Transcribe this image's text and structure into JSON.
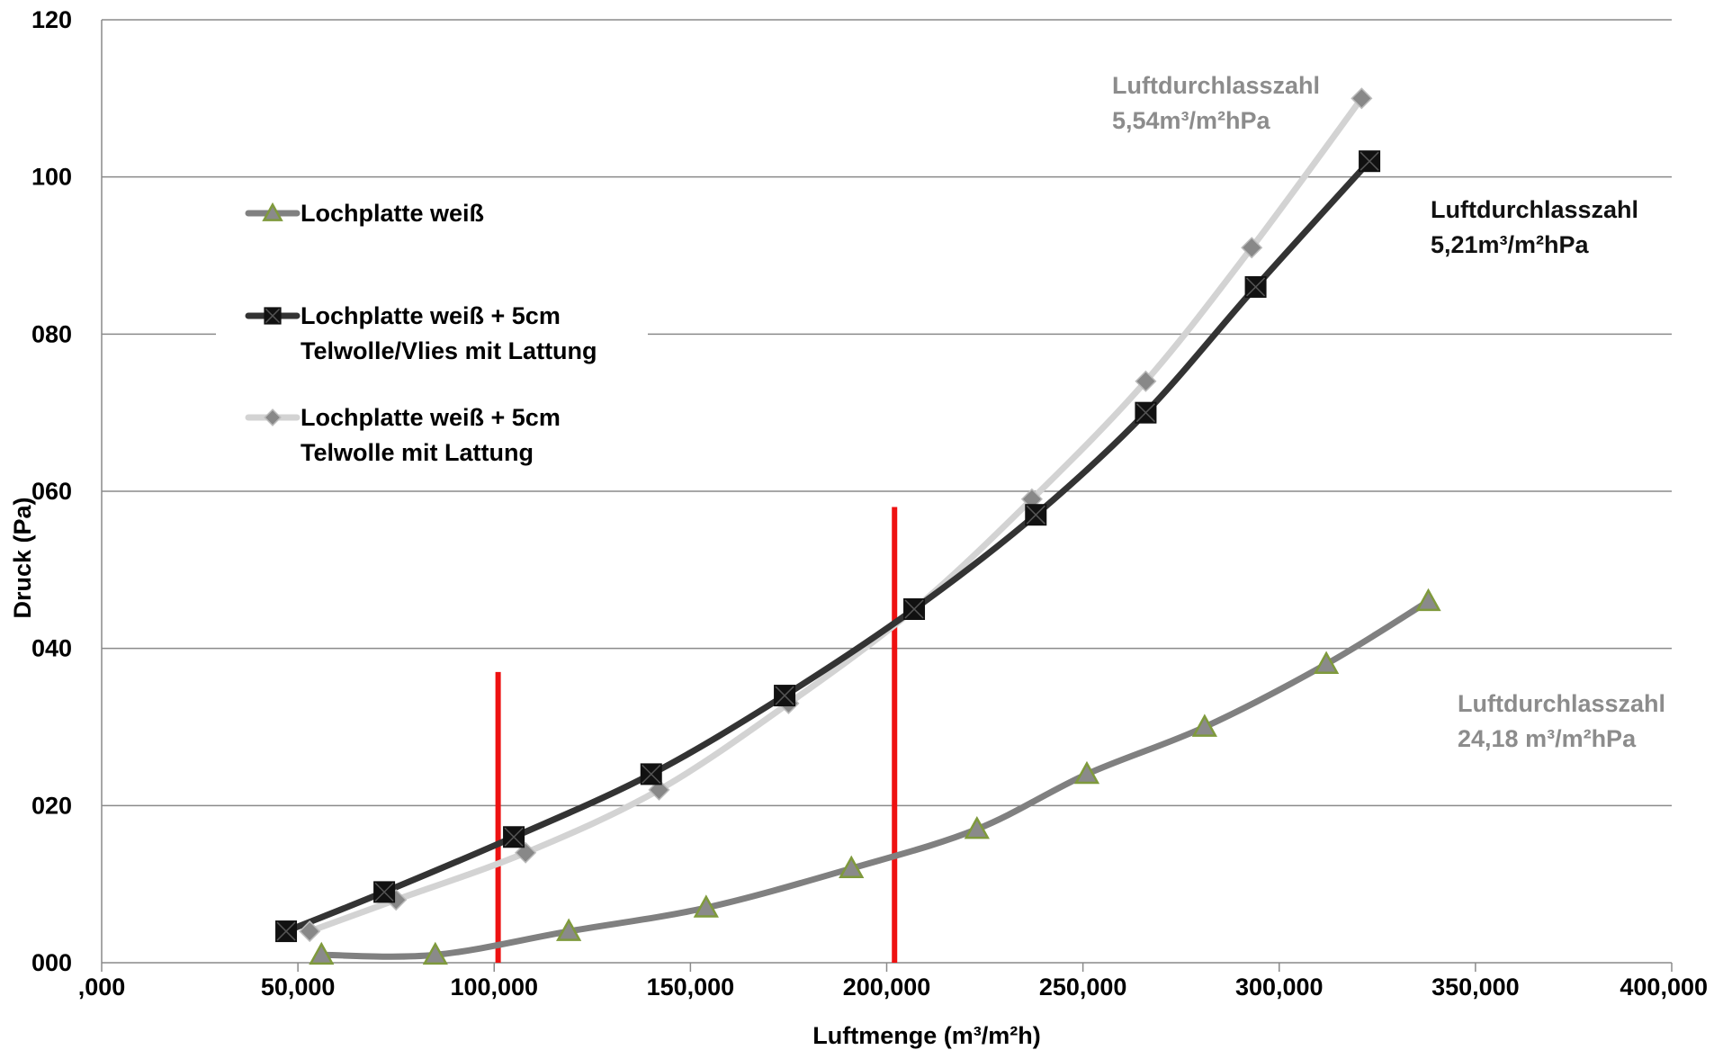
{
  "chart_data": {
    "type": "line",
    "title": "",
    "xlabel": "Luftmenge (m³/m²h)",
    "ylabel": "Druck (Pa)",
    "xlim": [
      0,
      400000
    ],
    "ylim": [
      0,
      120
    ],
    "grid": "horizontal",
    "legend_position": "upper-left",
    "x_tick_labels": [
      ",000",
      "50,000",
      "100,000",
      "150,000",
      "200,000",
      "250,000",
      "300,000",
      "350,000",
      "400,000"
    ],
    "y_tick_labels": [
      "000",
      "020",
      "040",
      "060",
      "080",
      "100",
      "120"
    ],
    "series": [
      {
        "name_lines": [
          "Lochplatte weiß"
        ],
        "color": "#808080",
        "marker": "triangle",
        "marker_color": "#7f9a3c",
        "points": [
          [
            56000,
            1
          ],
          [
            85000,
            1
          ],
          [
            119000,
            4
          ],
          [
            154000,
            7
          ],
          [
            191000,
            12
          ],
          [
            223000,
            17
          ],
          [
            251000,
            24
          ],
          [
            281000,
            30
          ],
          [
            312000,
            38
          ],
          [
            338000,
            46
          ]
        ]
      },
      {
        "name_lines": [
          "Lochplatte weiß + 5cm",
          "Telwolle/Vlies mit Lattung"
        ],
        "color": "#333333",
        "marker": "square",
        "marker_color": "#111111",
        "points": [
          [
            47000,
            4
          ],
          [
            72000,
            9
          ],
          [
            105000,
            16
          ],
          [
            140000,
            24
          ],
          [
            174000,
            34
          ],
          [
            207000,
            45
          ],
          [
            238000,
            57
          ],
          [
            266000,
            70
          ],
          [
            294000,
            86
          ],
          [
            323000,
            102
          ]
        ]
      },
      {
        "name_lines": [
          "Lochplatte weiß + 5cm",
          "Telwolle mit Lattung"
        ],
        "color": "#d3d3d3",
        "marker": "diamond",
        "marker_color": "#888888",
        "points": [
          [
            53000,
            4
          ],
          [
            75000,
            8
          ],
          [
            108000,
            14
          ],
          [
            142000,
            22
          ],
          [
            175000,
            33
          ],
          [
            207000,
            45
          ],
          [
            237000,
            59
          ],
          [
            266000,
            74
          ],
          [
            293000,
            91
          ],
          [
            321000,
            110
          ]
        ]
      }
    ],
    "reference_lines": [
      {
        "x": 101000,
        "y_from": 0,
        "y_to": 37,
        "color": "#ee1111"
      },
      {
        "x": 202000,
        "y_from": 0,
        "y_to": 58,
        "color": "#ee1111"
      }
    ],
    "annotations": [
      {
        "lines": [
          "Luftdurchlasszahl",
          "5,54m³/m²hPa"
        ],
        "color": "#8c8c8c"
      },
      {
        "lines": [
          "Luftdurchlasszahl",
          "5,21m³/m²hPa"
        ],
        "color": "#111111"
      },
      {
        "lines": [
          "Luftdurchlasszahl",
          "24,18 m³/m²hPa"
        ],
        "color": "#8c8c8c"
      }
    ]
  }
}
